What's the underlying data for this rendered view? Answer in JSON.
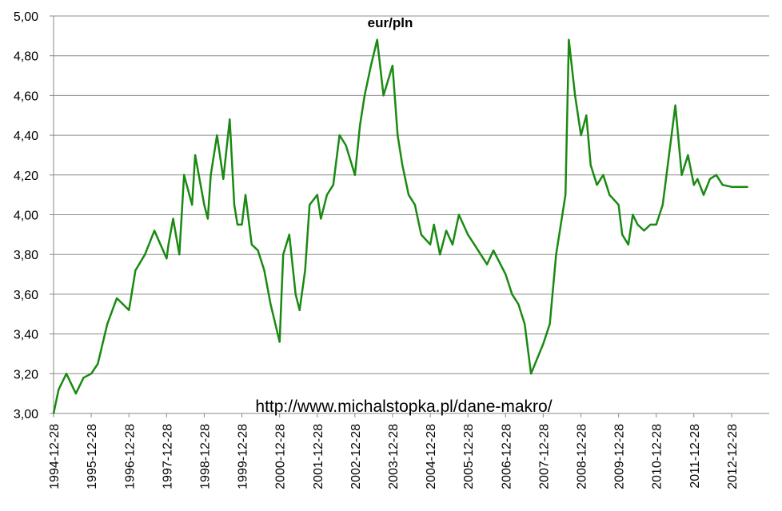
{
  "chart_data": {
    "type": "line",
    "title": "eur/pln",
    "xlabel": "",
    "ylabel": "",
    "ylim": [
      3.0,
      5.0
    ],
    "y_ticks": [
      "3,00",
      "3,20",
      "3,40",
      "3,60",
      "3,80",
      "4,00",
      "4,20",
      "4,40",
      "4,60",
      "4,80",
      "5,00"
    ],
    "x_ticks": [
      "1994-12-28",
      "1995-12-28",
      "1996-12-28",
      "1997-12-28",
      "1998-12-28",
      "1999-12-28",
      "2000-12-28",
      "2001-12-28",
      "2002-12-28",
      "2003-12-28",
      "2004-12-28",
      "2005-12-28",
      "2006-12-28",
      "2007-12-28",
      "2008-12-28",
      "2009-12-28",
      "2010-12-28",
      "2011-12-28",
      "2012-12-28"
    ],
    "grid": true,
    "line_color": "#1a8a12",
    "annotation": "http://www.michalstopka.pl/dane-makro/",
    "series": [
      {
        "x": [
          "1994-12-28",
          "1995-02-15",
          "1995-05-01",
          "1995-08-01",
          "1995-10-15",
          "1995-12-28",
          "1996-03-01",
          "1996-06-01",
          "1996-09-01",
          "1996-12-28",
          "1997-03-01",
          "1997-06-01",
          "1997-09-01",
          "1997-12-28",
          "1998-01-15",
          "1998-03-01",
          "1998-05-01",
          "1998-06-15",
          "1998-09-01",
          "1998-10-01",
          "1998-12-28",
          "1999-02-01",
          "1999-03-01",
          "1999-05-01",
          "1999-07-01",
          "1999-09-01",
          "1999-10-15",
          "1999-11-15",
          "1999-12-28",
          "2000-02-01",
          "2000-04-01",
          "2000-06-01",
          "2000-08-01",
          "2000-10-01",
          "2000-12-28",
          "2001-02-01",
          "2001-04-01",
          "2001-06-01",
          "2001-07-10",
          "2001-09-01",
          "2001-10-15",
          "2001-12-28",
          "2002-02-01",
          "2002-04-01",
          "2002-06-01",
          "2002-08-01",
          "2002-10-01",
          "2002-12-28",
          "2003-02-15",
          "2003-04-01",
          "2003-06-01",
          "2003-08-01",
          "2003-10-01",
          "2003-12-28",
          "2004-02-15",
          "2004-04-01",
          "2004-06-01",
          "2004-08-01",
          "2004-10-01",
          "2004-12-28",
          "2005-02-01",
          "2005-04-01",
          "2005-06-01",
          "2005-08-01",
          "2005-10-01",
          "2005-12-28",
          "2006-03-01",
          "2006-05-01",
          "2006-07-01",
          "2006-09-01",
          "2006-12-28",
          "2007-03-01",
          "2007-05-01",
          "2007-07-01",
          "2007-09-01",
          "2007-12-28",
          "2008-03-01",
          "2008-05-01",
          "2008-07-31",
          "2008-09-01",
          "2008-11-01",
          "2008-12-28",
          "2009-02-18",
          "2009-04-01",
          "2009-06-01",
          "2009-08-01",
          "2009-10-01",
          "2009-12-28",
          "2010-02-01",
          "2010-04-01",
          "2010-05-15",
          "2010-07-01",
          "2010-09-01",
          "2010-11-01",
          "2010-12-28",
          "2011-03-01",
          "2011-05-01",
          "2011-07-01",
          "2011-09-01",
          "2011-11-01",
          "2011-12-28",
          "2012-02-01",
          "2012-04-01",
          "2012-06-01",
          "2012-08-01",
          "2012-10-01",
          "2012-12-28",
          "2013-02-01",
          "2013-06-01"
        ],
        "values": [
          3.0,
          3.12,
          3.2,
          3.1,
          3.18,
          3.2,
          3.25,
          3.45,
          3.58,
          3.52,
          3.72,
          3.8,
          3.92,
          3.78,
          3.85,
          3.98,
          3.8,
          4.2,
          4.05,
          4.3,
          4.05,
          3.98,
          4.2,
          4.4,
          4.18,
          4.48,
          4.05,
          3.95,
          3.95,
          4.1,
          3.85,
          3.82,
          3.72,
          3.55,
          3.36,
          3.8,
          3.9,
          3.6,
          3.52,
          3.72,
          4.05,
          4.1,
          3.98,
          4.1,
          4.15,
          4.4,
          4.35,
          4.2,
          4.45,
          4.6,
          4.75,
          4.88,
          4.6,
          4.75,
          4.4,
          4.25,
          4.1,
          4.05,
          3.9,
          3.85,
          3.95,
          3.8,
          3.92,
          3.85,
          4.0,
          3.9,
          3.85,
          3.8,
          3.75,
          3.82,
          3.7,
          3.6,
          3.55,
          3.45,
          3.2,
          3.35,
          3.45,
          3.8,
          4.1,
          4.88,
          4.6,
          4.4,
          4.5,
          4.25,
          4.15,
          4.2,
          4.1,
          4.05,
          3.9,
          3.85,
          4.0,
          3.95,
          3.92,
          3.95,
          3.95,
          4.05,
          4.3,
          4.55,
          4.2,
          4.3,
          4.15,
          4.18,
          4.1,
          4.18,
          4.2,
          4.15,
          4.14,
          4.14,
          4.14
        ]
      }
    ]
  }
}
